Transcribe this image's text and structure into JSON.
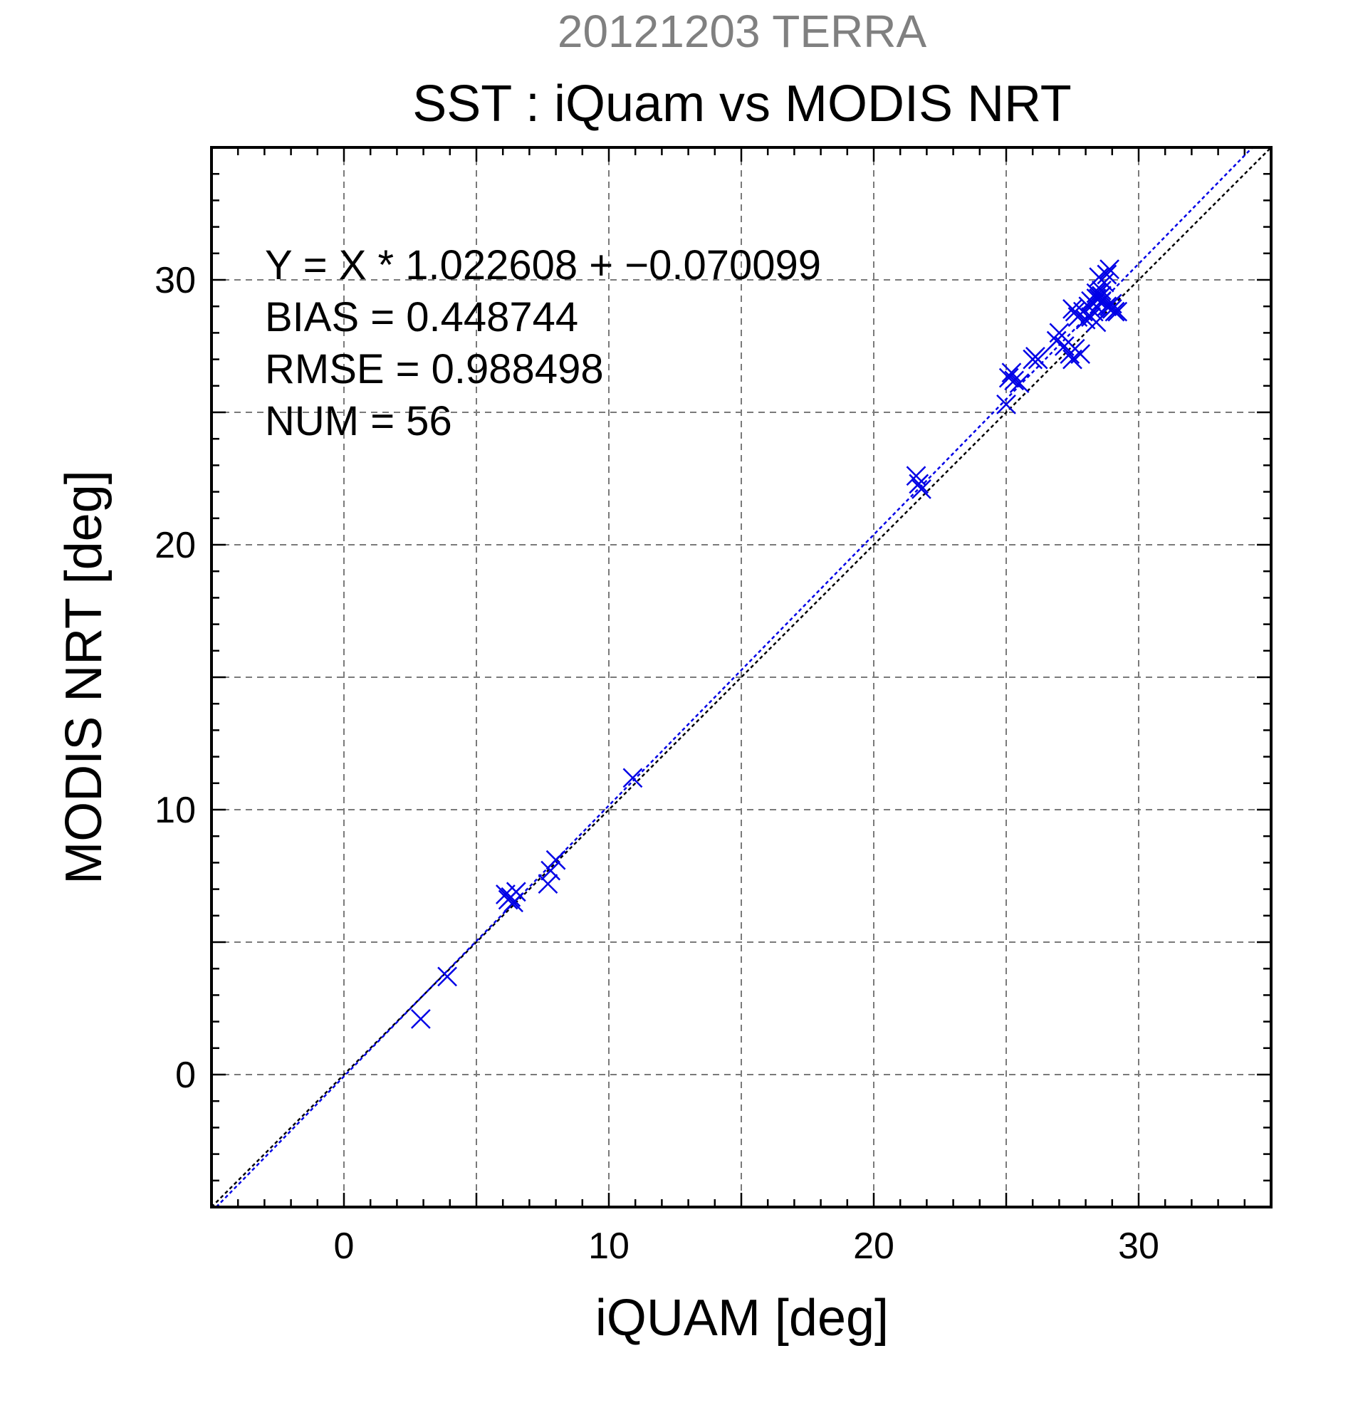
{
  "chart_data": {
    "type": "scatter",
    "subtitle": "20121203 TERRA",
    "title": "SST : iQuam vs MODIS NRT",
    "xlabel": "iQUAM [deg]",
    "ylabel": "MODIS NRT [deg]",
    "xlim": [
      -5,
      35
    ],
    "ylim": [
      -5,
      35
    ],
    "x_ticks": [
      0,
      10,
      20,
      30
    ],
    "y_ticks": [
      0,
      10,
      20,
      30
    ],
    "grid": true,
    "stats": [
      "Y = X * 1.022608 + −0.070099",
      "BIAS = 0.448744",
      "RMSE = 0.988498",
      "NUM = 56"
    ],
    "colors": {
      "points": "#0000e6",
      "identity_line": "#000000",
      "fit_line": "#0000e6"
    },
    "lines": [
      {
        "type": "identity",
        "slope": 1.0,
        "intercept": 0.0
      },
      {
        "type": "regression",
        "slope": 1.022608,
        "intercept": -0.070099
      }
    ],
    "points": [
      [
        2.9,
        2.1
      ],
      [
        3.9,
        3.7
      ],
      [
        6.1,
        6.8
      ],
      [
        6.2,
        6.6
      ],
      [
        6.3,
        6.7
      ],
      [
        6.4,
        6.5
      ],
      [
        6.5,
        6.9
      ],
      [
        7.7,
        7.2
      ],
      [
        7.8,
        7.7
      ],
      [
        8.0,
        8.1
      ],
      [
        10.9,
        11.2
      ],
      [
        21.6,
        22.6
      ],
      [
        21.7,
        22.3
      ],
      [
        21.8,
        22.1
      ],
      [
        25.0,
        25.3
      ],
      [
        25.1,
        26.3
      ],
      [
        25.2,
        26.5
      ],
      [
        25.3,
        26.2
      ],
      [
        25.5,
        26.1
      ],
      [
        26.0,
        27.0
      ],
      [
        26.1,
        27.1
      ],
      [
        26.2,
        27.0
      ],
      [
        26.9,
        27.7
      ],
      [
        27.0,
        28.0
      ],
      [
        27.2,
        27.5
      ],
      [
        27.4,
        27.2
      ],
      [
        27.5,
        27.0
      ],
      [
        27.6,
        27.4
      ],
      [
        27.8,
        27.2
      ],
      [
        27.5,
        28.9
      ],
      [
        27.7,
        28.6
      ],
      [
        27.9,
        28.8
      ],
      [
        28.0,
        28.5
      ],
      [
        28.1,
        29.0
      ],
      [
        28.2,
        29.2
      ],
      [
        28.3,
        28.8
      ],
      [
        28.4,
        29.5
      ],
      [
        28.4,
        28.4
      ],
      [
        28.5,
        30.1
      ],
      [
        28.5,
        29.3
      ],
      [
        28.6,
        29.2
      ],
      [
        28.6,
        29.4
      ],
      [
        28.7,
        29.9
      ],
      [
        28.8,
        29.0
      ],
      [
        28.9,
        30.4
      ],
      [
        29.0,
        28.9
      ],
      [
        29.1,
        28.8
      ],
      [
        29.2,
        28.8
      ],
      [
        28.2,
        28.6
      ],
      [
        28.3,
        29.1
      ],
      [
        28.6,
        29.6
      ],
      [
        28.8,
        30.2
      ],
      [
        28.4,
        29.3
      ],
      [
        29.0,
        29.1
      ],
      [
        27.6,
        28.8
      ],
      [
        28.9,
        29.0
      ]
    ]
  }
}
